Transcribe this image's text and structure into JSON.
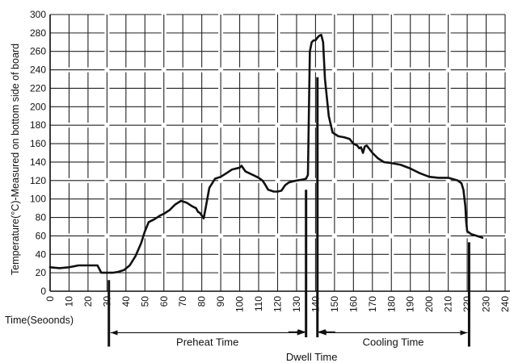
{
  "chart_data": {
    "type": "line",
    "title": "",
    "xlabel": "Time(Seoonds)",
    "ylabel": "Temperature(°C)-Measured on bottom side of board",
    "xlim": [
      0,
      240
    ],
    "ylim": [
      0,
      300
    ],
    "x_ticks": [
      0,
      10,
      20,
      30,
      40,
      50,
      60,
      70,
      80,
      90,
      100,
      110,
      120,
      130,
      140,
      150,
      160,
      170,
      180,
      190,
      200,
      210,
      220,
      230,
      240
    ],
    "y_ticks": [
      0,
      20,
      40,
      60,
      80,
      100,
      120,
      140,
      160,
      180,
      200,
      220,
      240,
      260,
      280,
      300
    ],
    "grid": true,
    "legend": "none",
    "line_color": "#111111",
    "series": [
      {
        "x": [
          0,
          5,
          10,
          15,
          20,
          25,
          27,
          30,
          33,
          36,
          39,
          42,
          45,
          48,
          50,
          52,
          55,
          58,
          60,
          63,
          66,
          69,
          72,
          75,
          77,
          78,
          79,
          80,
          81,
          82,
          84,
          87,
          90,
          93,
          96,
          100,
          101,
          103,
          105,
          108,
          110,
          112,
          113,
          115,
          118,
          120,
          122,
          124,
          126,
          128,
          130,
          133,
          135,
          136,
          137,
          138,
          139,
          140,
          141,
          142,
          143,
          144,
          145,
          147,
          149,
          152,
          155,
          158,
          160,
          162,
          163,
          164,
          165,
          166,
          167,
          170,
          173,
          176,
          180,
          185,
          190,
          195,
          200,
          205,
          210,
          215,
          217,
          218,
          219,
          219.5,
          220,
          222,
          225,
          228
        ],
        "y": [
          26,
          25,
          26,
          28,
          28,
          28,
          20,
          20,
          20,
          21,
          23,
          28,
          38,
          52,
          65,
          75,
          78,
          82,
          84,
          88,
          94,
          98,
          96,
          92,
          90,
          86,
          85,
          82,
          79,
          90,
          112,
          122,
          124,
          128,
          132,
          134,
          136,
          130,
          128,
          125,
          123,
          120,
          117,
          110,
          108,
          108,
          109,
          115,
          118,
          119,
          120,
          121,
          122,
          126,
          260,
          270,
          272,
          272,
          275,
          277,
          278,
          270,
          230,
          190,
          172,
          168,
          167,
          165,
          160,
          158,
          155,
          156,
          150,
          157,
          158,
          150,
          144,
          140,
          139,
          137,
          133,
          128,
          124,
          123,
          123,
          120,
          117,
          110,
          93,
          75,
          65,
          62,
          60,
          58
        ]
      }
    ],
    "markers": [
      {
        "x": 31,
        "y_top": 12,
        "y_bottom": -60
      },
      {
        "x": 135,
        "y_top": 110,
        "y_bottom": -50
      },
      {
        "x": 141,
        "y_top": 232,
        "y_bottom": -50
      },
      {
        "x": 221,
        "y_top": 53,
        "y_bottom": -60
      }
    ],
    "annotations": [
      {
        "label": "Preheat Time",
        "from": 31,
        "to": 135,
        "at_y": -45,
        "style": "arrow-both"
      },
      {
        "label": "Dwell Time",
        "from": 135,
        "to": 141,
        "at_y": -58,
        "style": "arrow-in"
      },
      {
        "label": "Cooling Time",
        "from": 141,
        "to": 221,
        "at_y": -45,
        "style": "arrow-both"
      }
    ]
  }
}
